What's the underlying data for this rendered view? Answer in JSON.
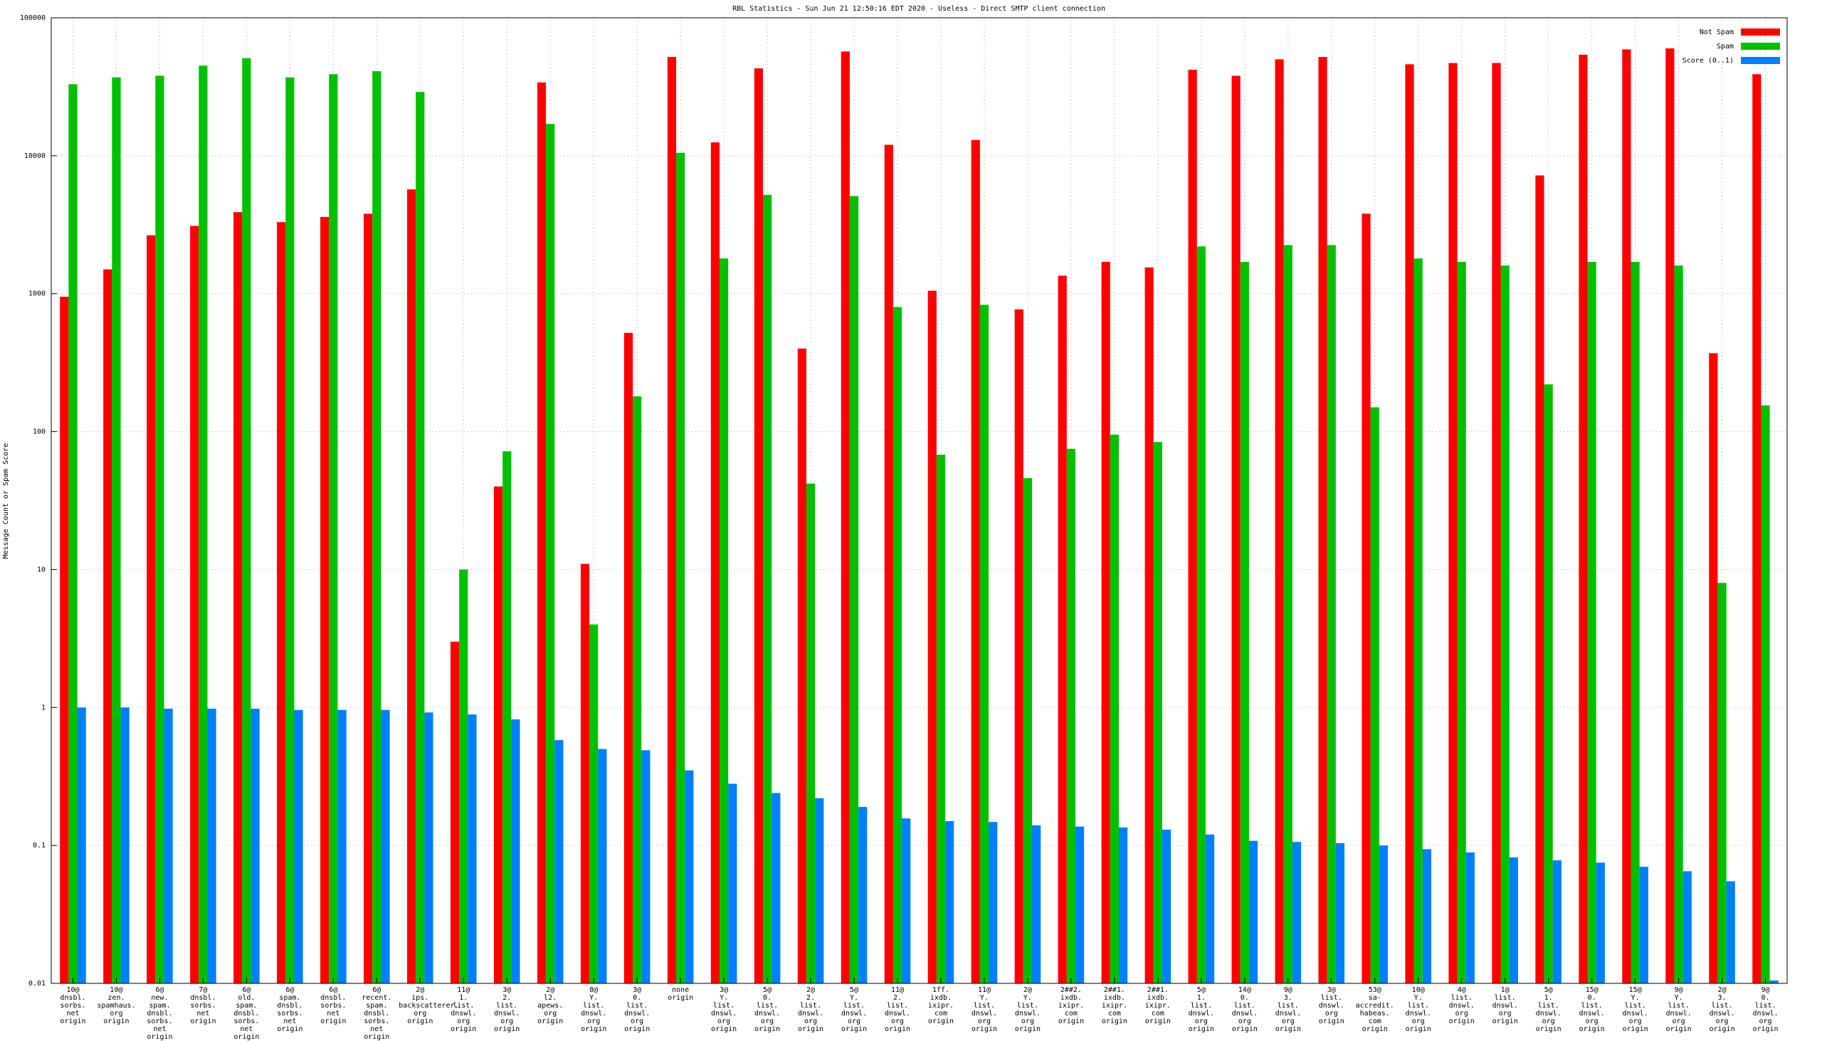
{
  "chart_data": {
    "type": "bar",
    "title": "RBL Statistics - Sun Jun 21 12:50:16 EDT 2020 - Useless - Direct SMTP client connection",
    "y_label": "Message Count or Spam Score",
    "log_scale": true,
    "grid": true,
    "legend": "top-right",
    "ylim": [
      0.01,
      100000
    ],
    "yticks": [
      0.01,
      0.1,
      1,
      10,
      100,
      1000,
      10000,
      100000
    ],
    "categories": [
      "10@\ndnsbl.\nsorbs.\nnet\norigin",
      "10@\nzen.\nspamhaus.\norg\norigin",
      "6@\nnew.\nspam.\ndnsbl.\nsorbs.\nnet\norigin",
      "7@\ndnsbl.\nsorbs.\nnet\norigin",
      "6@\nold.\nspam.\ndnsbl.\nsorbs.\nnet\norigin",
      "6@\nspam.\ndnsbl.\nsorbs.\nnet\norigin",
      "6@\ndnsbl.\nsorbs.\nnet\norigin",
      "6@\nrecent.\nspam.\ndnsbl.\nsorbs.\nnet\norigin",
      "2@\nips.\nbackscatterer.\norg\norigin",
      "11@\n1.\nlist.\ndnswl.\norg\norigin",
      "3@\n2.\nlist.\ndnswl.\norg\norigin",
      "2@\nl2.\napews.\norg\norigin",
      "8@\nY.\nlist.\ndnswl.\norg\norigin",
      "3@\n0.\nlist.\ndnswl.\norg\norigin",
      "none\norigin",
      "3@\nY.\nlist.\ndnswl.\norg\norigin",
      "5@\n0.\nlist.\ndnswl.\norg\norigin",
      "2@\n2.\nlist.\ndnswl.\norg\norigin",
      "5@\nY.\nlist.\ndnswl.\norg\norigin",
      "11@\n2.\nlist.\ndnswl.\norg\norigin",
      "1ff.\nixdb.\nixipr.\ncom\norigin",
      "11@\nY.\nlist.\ndnswl.\norg\norigin",
      "2@\nY.\nlist.\ndnswl.\norg\norigin",
      "2##2.\nixdb.\nixipr.\ncom\norigin",
      "2##1.\nixdb.\nixipr.\ncom\norigin",
      "2##1.\nixdb.\nixipr.\ncom\norigin",
      "5@\n1.\nlist.\ndnswl.\norg\norigin",
      "14@\n0.\nlist.\ndnswl.\norg\norigin",
      "9@\n3.\nlist.\ndnswl.\norg\norigin",
      "3@\nlist.\ndnswl.\norg\norigin",
      "53@\nsa-accredit.\nhabeas.\ncom\norigin",
      "10@\nY.\nlist.\ndnswl.\norg\norigin",
      "4@\nlist.\ndnswl.\norg\norigin",
      "1@\nlist.\ndnswl.\norg\norigin",
      "5@\n1.\nlist.\ndnswl.\norg\norigin",
      "15@\n0.\nlist.\ndnswl.\norg\norigin",
      "15@\nY.\nlist.\ndnswl.\norg\norigin",
      "9@\nY.\nlist.\ndnswl.\norg\norigin",
      "2@\n3.\nlist.\ndnswl.\norg\norigin",
      "9@\n0.\nlist.\ndnswl.\norg\norigin"
    ],
    "series": [
      {
        "name": "Not Spam",
        "color": "#ff0000",
        "values": [
          950,
          1500,
          2650,
          3100,
          3900,
          3300,
          3600,
          3800,
          5700,
          3,
          40,
          34000,
          11,
          520,
          52000,
          12500,
          43000,
          400,
          57000,
          12000,
          1050,
          13000,
          770,
          1350,
          1700,
          1550,
          42000,
          38000,
          50000,
          52000,
          3800,
          46000,
          47000,
          47000,
          7200,
          54000,
          59000,
          60000,
          370,
          39000
        ]
      },
      {
        "name": "Spam",
        "color": "#00c000",
        "values": [
          33000,
          37000,
          38000,
          45000,
          51000,
          37000,
          39000,
          41000,
          29000,
          10,
          72,
          17000,
          4,
          180,
          10500,
          1800,
          5200,
          42,
          5100,
          800,
          68,
          830,
          46,
          75,
          95,
          84,
          2200,
          1700,
          2250,
          2250,
          150,
          1800,
          1700,
          1600,
          220,
          1700,
          1700,
          1600,
          8,
          155
        ]
      },
      {
        "name": "Score (0..1)",
        "color": "#0080ff",
        "values": [
          1.0,
          1.0,
          0.98,
          0.98,
          0.98,
          0.96,
          0.96,
          0.96,
          0.92,
          0.89,
          0.82,
          0.58,
          0.5,
          0.49,
          0.35,
          0.28,
          0.24,
          0.22,
          0.19,
          0.157,
          0.15,
          0.148,
          0.14,
          0.137,
          0.135,
          0.13,
          0.12,
          0.108,
          0.106,
          0.104,
          0.1,
          0.094,
          0.089,
          0.082,
          0.078,
          0.075,
          0.07,
          0.065,
          0.055,
          0.0105
        ]
      }
    ]
  }
}
